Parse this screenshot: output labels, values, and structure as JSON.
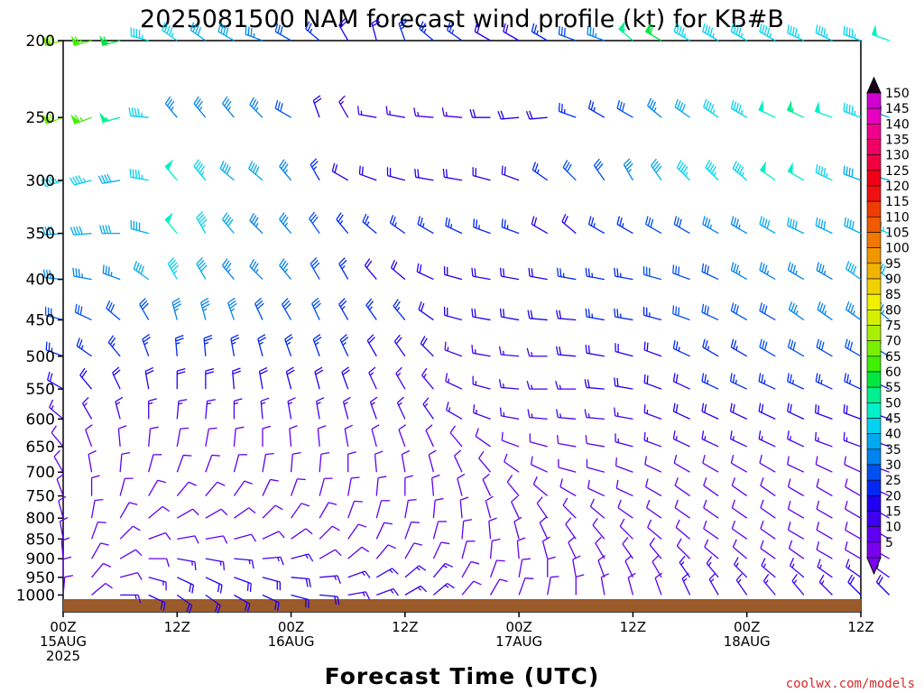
{
  "chart_data": {
    "type": "wind-barb-profile",
    "title": "2025081500 NAM forecast wind profile (kt) for KB#B",
    "xlabel": "Forecast Time (UTC)",
    "credit": "coolwx.com/models",
    "y_axis": {
      "unit": "hPa",
      "inverted": true,
      "range": [
        1050,
        200
      ],
      "ticks": [
        "200",
        "250",
        "300",
        "350",
        "400",
        "450",
        "500",
        "550",
        "600",
        "650",
        "700",
        "750",
        "800",
        "850",
        "900",
        "950",
        "1000"
      ]
    },
    "x_axis": {
      "range_hours": [
        0,
        84
      ],
      "step_hours": 3,
      "ticks": [
        {
          "hour": 0,
          "lines": [
            "00Z",
            "15AUG",
            "2025"
          ]
        },
        {
          "hour": 12,
          "lines": [
            "12Z"
          ]
        },
        {
          "hour": 24,
          "lines": [
            "00Z",
            "16AUG"
          ]
        },
        {
          "hour": 36,
          "lines": [
            "12Z"
          ]
        },
        {
          "hour": 48,
          "lines": [
            "00Z",
            "17AUG"
          ]
        },
        {
          "hour": 60,
          "lines": [
            "12Z"
          ]
        },
        {
          "hour": 72,
          "lines": [
            "00Z",
            "18AUG"
          ]
        },
        {
          "hour": 84,
          "lines": [
            "12Z"
          ]
        }
      ]
    },
    "ground_color": "#9b5a2a",
    "colorbar": {
      "unit": "kt",
      "labels": [
        "150",
        "145",
        "140",
        "135",
        "130",
        "125",
        "120",
        "115",
        "110",
        "105",
        "100",
        "95",
        "90",
        "85",
        "80",
        "75",
        "70",
        "65",
        "60",
        "55",
        "50",
        "45",
        "40",
        "35",
        "30",
        "25",
        "20",
        "15",
        "10",
        "5"
      ],
      "colors": [
        "#d000d0",
        "#e800c0",
        "#f0008c",
        "#f00064",
        "#f00040",
        "#f00014",
        "#f01010",
        "#f03c00",
        "#f05a00",
        "#f07800",
        "#f09600",
        "#f0b400",
        "#f0d200",
        "#f0f000",
        "#d4f000",
        "#a8f000",
        "#78f000",
        "#40f000",
        "#00e840",
        "#00f090",
        "#00f0c8",
        "#00d2f0",
        "#00aaf0",
        "#0082f0",
        "#0050f0",
        "#0028f0",
        "#2000f0",
        "#4000f0",
        "#6000f0",
        "#7c00f0"
      ]
    },
    "levels": [
      "200",
      "250",
      "300",
      "350",
      "400",
      "450",
      "500",
      "550",
      "600",
      "650",
      "700",
      "750",
      "800",
      "850",
      "900",
      "950",
      "1000"
    ],
    "barb_grid_note": "wind direction (deg) / speed (kt) per level, forecast hours 0..84 step 3",
    "wind": {
      "200": {
        "dir": [
          255,
          255,
          255,
          285,
          305,
          305,
          300,
          290,
          300,
          310,
          330,
          345,
          340,
          310,
          305,
          300,
          300,
          300,
          290,
          290,
          310,
          300,
          300,
          300,
          300,
          300,
          295,
          295,
          290,
          290
        ],
        "spd": [
          70,
          65,
          60,
          45,
          45,
          40,
          40,
          35,
          30,
          25,
          20,
          20,
          25,
          25,
          25,
          20,
          20,
          25,
          30,
          35,
          55,
          60,
          45,
          45,
          45,
          45,
          45,
          45,
          45,
          50
        ]
      },
      "250": {
        "dir": [
          250,
          250,
          255,
          275,
          320,
          320,
          320,
          315,
          300,
          340,
          330,
          280,
          280,
          275,
          275,
          270,
          265,
          265,
          290,
          300,
          300,
          310,
          305,
          305,
          300,
          295,
          295,
          290,
          290,
          290
        ],
        "spd": [
          70,
          65,
          55,
          45,
          35,
          35,
          35,
          35,
          30,
          20,
          15,
          15,
          15,
          15,
          15,
          20,
          20,
          20,
          25,
          25,
          30,
          35,
          40,
          45,
          45,
          50,
          55,
          50,
          45,
          40
        ]
      },
      "300": {
        "dir": [
          250,
          255,
          260,
          280,
          320,
          320,
          310,
          310,
          320,
          330,
          300,
          290,
          285,
          280,
          280,
          285,
          290,
          305,
          315,
          325,
          330,
          325,
          315,
          315,
          310,
          305,
          300,
          295,
          290,
          285
        ],
        "spd": [
          45,
          45,
          40,
          45,
          50,
          45,
          40,
          40,
          35,
          25,
          20,
          20,
          20,
          20,
          20,
          20,
          20,
          25,
          30,
          30,
          35,
          40,
          45,
          45,
          45,
          50,
          50,
          45,
          40,
          40
        ]
      },
      "350": {
        "dir": [
          265,
          265,
          270,
          285,
          320,
          330,
          320,
          315,
          320,
          325,
          320,
          310,
          305,
          300,
          295,
          290,
          290,
          300,
          310,
          300,
          300,
          300,
          300,
          300,
          300,
          300,
          295,
          295,
          295,
          290
        ],
        "spd": [
          40,
          40,
          40,
          40,
          50,
          45,
          40,
          35,
          35,
          30,
          25,
          25,
          25,
          25,
          25,
          25,
          25,
          20,
          20,
          25,
          25,
          30,
          30,
          35,
          35,
          40,
          40,
          40,
          40,
          45
        ]
      },
      "400": {
        "dir": [
          275,
          280,
          290,
          305,
          330,
          330,
          320,
          315,
          320,
          330,
          330,
          320,
          310,
          295,
          285,
          280,
          280,
          280,
          280,
          280,
          280,
          285,
          290,
          295,
          300,
          300,
          300,
          300,
          305,
          310
        ],
        "spd": [
          35,
          35,
          35,
          40,
          45,
          40,
          35,
          35,
          35,
          30,
          25,
          20,
          20,
          20,
          20,
          20,
          20,
          20,
          25,
          25,
          25,
          30,
          30,
          30,
          35,
          35,
          35,
          35,
          40,
          40
        ]
      },
      "450": {
        "dir": [
          285,
          295,
          310,
          330,
          345,
          345,
          340,
          335,
          330,
          335,
          330,
          325,
          320,
          305,
          285,
          280,
          280,
          275,
          275,
          280,
          280,
          285,
          290,
          295,
          300,
          300,
          305,
          305,
          305,
          310
        ],
        "spd": [
          30,
          30,
          30,
          30,
          35,
          35,
          35,
          30,
          30,
          30,
          25,
          25,
          25,
          20,
          20,
          20,
          20,
          20,
          20,
          25,
          25,
          25,
          30,
          30,
          30,
          30,
          35,
          35,
          35,
          35
        ]
      },
      "500": {
        "dir": [
          290,
          305,
          320,
          340,
          355,
          355,
          350,
          345,
          340,
          340,
          335,
          330,
          325,
          315,
          290,
          280,
          275,
          270,
          275,
          280,
          285,
          290,
          295,
          300,
          300,
          300,
          300,
          300,
          300,
          300
        ],
        "spd": [
          25,
          25,
          25,
          25,
          25,
          25,
          25,
          25,
          25,
          25,
          25,
          20,
          20,
          20,
          15,
          15,
          15,
          15,
          20,
          20,
          20,
          20,
          25,
          25,
          25,
          30,
          30,
          30,
          30,
          30
        ]
      },
      "550": {
        "dir": [
          300,
          320,
          335,
          350,
          360,
          360,
          355,
          350,
          345,
          345,
          340,
          335,
          330,
          320,
          295,
          285,
          275,
          270,
          270,
          275,
          280,
          290,
          295,
          295,
          295,
          295,
          295,
          295,
          295,
          295
        ],
        "spd": [
          20,
          20,
          20,
          20,
          20,
          20,
          20,
          20,
          20,
          20,
          20,
          15,
          15,
          15,
          15,
          15,
          15,
          15,
          15,
          20,
          20,
          20,
          20,
          25,
          25,
          25,
          25,
          25,
          25,
          25
        ]
      },
      "600": {
        "dir": [
          310,
          330,
          345,
          360,
          5,
          5,
          360,
          355,
          350,
          350,
          345,
          340,
          335,
          325,
          300,
          290,
          280,
          275,
          275,
          275,
          280,
          290,
          295,
          295,
          295,
          295,
          295,
          290,
          290,
          290
        ],
        "spd": [
          15,
          15,
          15,
          15,
          15,
          15,
          15,
          15,
          15,
          15,
          15,
          15,
          15,
          15,
          15,
          15,
          15,
          15,
          15,
          15,
          15,
          15,
          20,
          20,
          20,
          20,
          20,
          20,
          20,
          20
        ]
      },
      "650": {
        "dir": [
          320,
          340,
          355,
          5,
          10,
          10,
          5,
          360,
          355,
          355,
          350,
          345,
          340,
          335,
          320,
          305,
          290,
          285,
          280,
          280,
          285,
          290,
          295,
          295,
          295,
          295,
          295,
          290,
          290,
          290
        ],
        "spd": [
          10,
          10,
          10,
          10,
          10,
          10,
          10,
          10,
          10,
          10,
          10,
          10,
          10,
          10,
          10,
          10,
          10,
          10,
          10,
          10,
          15,
          15,
          15,
          15,
          15,
          15,
          15,
          15,
          15,
          15
        ]
      },
      "700": {
        "dir": [
          330,
          350,
          5,
          15,
          20,
          20,
          15,
          10,
          5,
          5,
          360,
          355,
          350,
          345,
          335,
          320,
          305,
          295,
          285,
          285,
          290,
          295,
          300,
          300,
          300,
          300,
          295,
          295,
          295,
          290
        ],
        "spd": [
          10,
          10,
          10,
          10,
          10,
          10,
          10,
          10,
          10,
          10,
          10,
          10,
          10,
          10,
          10,
          10,
          10,
          10,
          10,
          10,
          10,
          10,
          10,
          10,
          10,
          10,
          10,
          10,
          10,
          10
        ]
      },
      "750": {
        "dir": [
          340,
          360,
          15,
          30,
          40,
          40,
          35,
          25,
          20,
          15,
          10,
          5,
          360,
          355,
          345,
          335,
          320,
          310,
          300,
          295,
          295,
          300,
          305,
          305,
          305,
          305,
          300,
          300,
          300,
          295
        ],
        "spd": [
          10,
          10,
          10,
          10,
          10,
          10,
          10,
          10,
          10,
          10,
          10,
          10,
          10,
          10,
          10,
          10,
          10,
          10,
          10,
          10,
          10,
          10,
          10,
          10,
          10,
          10,
          10,
          10,
          10,
          10
        ]
      },
      "800": {
        "dir": [
          345,
          10,
          30,
          50,
          60,
          60,
          55,
          45,
          35,
          30,
          20,
          15,
          10,
          5,
          355,
          345,
          335,
          325,
          315,
          310,
          305,
          305,
          305,
          305,
          305,
          305,
          300,
          300,
          300,
          300
        ],
        "spd": [
          10,
          10,
          10,
          10,
          10,
          10,
          10,
          10,
          10,
          10,
          10,
          10,
          10,
          10,
          10,
          10,
          10,
          10,
          10,
          10,
          10,
          10,
          10,
          10,
          10,
          10,
          10,
          10,
          10,
          10
        ]
      },
      "850": {
        "dir": [
          350,
          20,
          45,
          70,
          80,
          80,
          75,
          65,
          55,
          45,
          35,
          25,
          20,
          15,
          5,
          355,
          345,
          335,
          325,
          320,
          315,
          310,
          310,
          305,
          305,
          305,
          300,
          300,
          300,
          300
        ],
        "spd": [
          10,
          10,
          10,
          10,
          10,
          10,
          10,
          10,
          10,
          10,
          10,
          10,
          10,
          10,
          10,
          10,
          10,
          10,
          10,
          10,
          10,
          10,
          10,
          10,
          10,
          10,
          10,
          10,
          10,
          10
        ]
      },
      "900": {
        "dir": [
          355,
          30,
          60,
          90,
          100,
          100,
          95,
          85,
          75,
          60,
          50,
          40,
          30,
          25,
          15,
          5,
          355,
          345,
          335,
          330,
          325,
          320,
          315,
          310,
          310,
          305,
          305,
          300,
          300,
          300
        ],
        "spd": [
          10,
          10,
          10,
          10,
          15,
          15,
          15,
          15,
          15,
          10,
          10,
          10,
          10,
          10,
          10,
          10,
          10,
          10,
          10,
          10,
          10,
          10,
          10,
          10,
          10,
          10,
          10,
          10,
          10,
          10
        ]
      },
      "950": {
        "dir": [
          360,
          40,
          75,
          105,
          115,
          115,
          110,
          105,
          95,
          85,
          70,
          60,
          50,
          40,
          30,
          20,
          10,
          360,
          350,
          340,
          335,
          330,
          325,
          320,
          315,
          310,
          310,
          305,
          305,
          305
        ],
        "spd": [
          10,
          10,
          10,
          15,
          20,
          20,
          20,
          20,
          20,
          15,
          15,
          15,
          15,
          15,
          10,
          10,
          10,
          10,
          10,
          10,
          10,
          10,
          15,
          15,
          15,
          15,
          15,
          15,
          15,
          15
        ]
      },
      "1000": {
        "dir": [
          5,
          50,
          90,
          115,
          125,
          125,
          120,
          115,
          105,
          95,
          80,
          70,
          60,
          50,
          40,
          30,
          20,
          10,
          360,
          350,
          345,
          340,
          335,
          330,
          325,
          320,
          320,
          315,
          315,
          315
        ],
        "spd": [
          10,
          10,
          15,
          20,
          20,
          20,
          20,
          20,
          20,
          20,
          15,
          15,
          15,
          15,
          10,
          10,
          10,
          10,
          10,
          10,
          10,
          10,
          15,
          15,
          15,
          15,
          15,
          15,
          20,
          20
        ]
      }
    }
  }
}
